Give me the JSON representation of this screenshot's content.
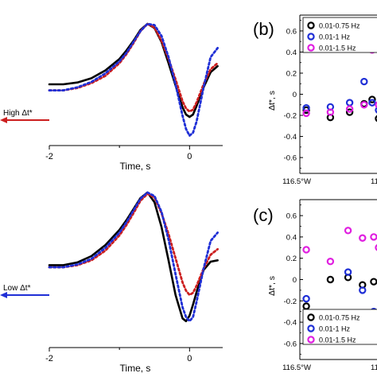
{
  "colors": {
    "black": "#000000",
    "red": "#cc1f1f",
    "blue": "#1f2fd6",
    "magenta": "#e01fe0"
  },
  "chart_data": [
    {
      "id": "waveform-top",
      "type": "line",
      "xlabel": "Time, s",
      "xticks": [
        "-2",
        "0"
      ],
      "xlim": [
        -2.0,
        0.45
      ],
      "side_label": "High Δt*",
      "series": [
        {
          "style": "solid",
          "color": "#000000",
          "x": [
            -2,
            -1.8,
            -1.6,
            -1.4,
            -1.2,
            -1.0,
            -0.9,
            -0.8,
            -0.7,
            -0.6,
            -0.5,
            -0.4,
            -0.3,
            -0.2,
            -0.1,
            -0.05,
            0,
            0.05,
            0.1,
            0.2,
            0.3,
            0.4
          ],
          "y": [
            0,
            0,
            0.03,
            0.1,
            0.23,
            0.42,
            0.56,
            0.72,
            0.9,
            1.0,
            0.93,
            0.7,
            0.35,
            -0.02,
            -0.38,
            -0.5,
            -0.54,
            -0.5,
            -0.36,
            -0.05,
            0.2,
            0.3
          ]
        },
        {
          "style": "dotted",
          "color": "#cc1f1f",
          "x": [
            -2,
            -1.8,
            -1.6,
            -1.4,
            -1.2,
            -1.0,
            -0.9,
            -0.8,
            -0.7,
            -0.6,
            -0.5,
            -0.4,
            -0.3,
            -0.2,
            -0.1,
            -0.05,
            0,
            0.05,
            0.1,
            0.2,
            0.3,
            0.4
          ],
          "y": [
            -0.1,
            -0.1,
            -0.06,
            0.02,
            0.14,
            0.35,
            0.5,
            0.68,
            0.88,
            1.0,
            0.94,
            0.72,
            0.42,
            0.08,
            -0.28,
            -0.4,
            -0.45,
            -0.42,
            -0.3,
            0.0,
            0.25,
            0.35
          ]
        },
        {
          "style": "dotted",
          "color": "#1f2fd6",
          "x": [
            -2,
            -1.8,
            -1.6,
            -1.4,
            -1.2,
            -1.0,
            -0.9,
            -0.8,
            -0.7,
            -0.6,
            -0.5,
            -0.4,
            -0.3,
            -0.2,
            -0.1,
            -0.05,
            0,
            0.05,
            0.1,
            0.2,
            0.3,
            0.4
          ],
          "y": [
            -0.1,
            -0.1,
            -0.05,
            0.04,
            0.18,
            0.38,
            0.52,
            0.7,
            0.88,
            1.0,
            0.98,
            0.8,
            0.45,
            0.0,
            -0.52,
            -0.74,
            -0.85,
            -0.8,
            -0.62,
            -0.05,
            0.45,
            0.6
          ]
        }
      ]
    },
    {
      "id": "waveform-bottom",
      "type": "line",
      "xlabel": "Time, s",
      "xticks": [
        "-2",
        "0"
      ],
      "xlim": [
        -2.0,
        0.45
      ],
      "side_label": "Low Δt*",
      "series": [
        {
          "style": "solid",
          "color": "#000000",
          "x": [
            -2,
            -1.8,
            -1.6,
            -1.4,
            -1.2,
            -1.0,
            -0.9,
            -0.8,
            -0.7,
            -0.6,
            -0.5,
            -0.4,
            -0.3,
            -0.2,
            -0.1,
            -0.05,
            0,
            0.05,
            0.1,
            0.2,
            0.3,
            0.4
          ],
          "y": [
            -0.05,
            -0.05,
            -0.01,
            0.08,
            0.24,
            0.46,
            0.6,
            0.76,
            0.92,
            1.0,
            0.86,
            0.5,
            0.02,
            -0.48,
            -0.82,
            -0.86,
            -0.78,
            -0.62,
            -0.44,
            -0.12,
            0.0,
            0.02
          ]
        },
        {
          "style": "dotted",
          "color": "#cc1f1f",
          "x": [
            -2,
            -1.8,
            -1.6,
            -1.4,
            -1.2,
            -1.0,
            -0.9,
            -0.8,
            -0.7,
            -0.6,
            -0.5,
            -0.4,
            -0.3,
            -0.2,
            -0.1,
            -0.05,
            0,
            0.05,
            0.1,
            0.2,
            0.3,
            0.4
          ],
          "y": [
            -0.08,
            -0.08,
            -0.05,
            0.02,
            0.16,
            0.38,
            0.53,
            0.7,
            0.88,
            0.98,
            0.93,
            0.7,
            0.4,
            0.05,
            -0.3,
            -0.42,
            -0.48,
            -0.45,
            -0.35,
            -0.1,
            0.1,
            0.18
          ]
        },
        {
          "style": "dotted",
          "color": "#1f2fd6",
          "x": [
            -2,
            -1.8,
            -1.6,
            -1.4,
            -1.2,
            -1.0,
            -0.9,
            -0.8,
            -0.7,
            -0.6,
            -0.5,
            -0.4,
            -0.3,
            -0.2,
            -0.1,
            -0.05,
            0,
            0.05,
            0.1,
            0.2,
            0.3,
            0.4
          ],
          "y": [
            -0.08,
            -0.08,
            -0.04,
            0.04,
            0.2,
            0.42,
            0.57,
            0.74,
            0.91,
            1.0,
            0.95,
            0.72,
            0.32,
            -0.18,
            -0.66,
            -0.8,
            -0.86,
            -0.8,
            -0.58,
            -0.1,
            0.3,
            0.42
          ]
        }
      ]
    },
    {
      "id": "panel-b",
      "type": "scatter",
      "panel_label": "(b)",
      "ylabel": "Δt*, s",
      "ylim": [
        -0.75,
        0.75
      ],
      "yticks": [
        -0.6,
        -0.4,
        -0.2,
        0,
        0.2,
        0.4,
        0.6
      ],
      "xlim": [
        0,
        1
      ],
      "xtick_labels": [
        "116.5°W",
        "11"
      ],
      "legend_position": "top-right",
      "series": [
        {
          "name": "0.01-0.75 Hz",
          "color": "#000000",
          "x": [
            0.08,
            0.38,
            0.62,
            0.8,
            0.9,
            0.98
          ],
          "y": [
            -0.15,
            -0.22,
            -0.17,
            -0.09,
            -0.05,
            -0.23
          ]
        },
        {
          "name": "0.01-1 Hz",
          "color": "#1f2fd6",
          "x": [
            0.08,
            0.38,
            0.62,
            0.8,
            0.9,
            0.98
          ],
          "y": [
            -0.13,
            -0.12,
            -0.08,
            0.12,
            -0.08,
            -0.15
          ]
        },
        {
          "name": "0.01-1.5 Hz",
          "color": "#e01fe0",
          "x": [
            0.08,
            0.38,
            0.62,
            0.8,
            0.9,
            0.98
          ],
          "y": [
            -0.18,
            -0.17,
            -0.14,
            -0.1,
            0.42,
            -0.1
          ]
        }
      ]
    },
    {
      "id": "panel-c",
      "type": "scatter",
      "panel_label": "(c)",
      "ylabel": "Δt*, s",
      "ylim": [
        -0.75,
        0.75
      ],
      "yticks": [
        -0.6,
        -0.4,
        -0.2,
        0,
        0.2,
        0.4,
        0.6
      ],
      "xlim": [
        0,
        1
      ],
      "xtick_labels": [
        "116.5°W",
        "11"
      ],
      "legend_position": "bottom-right",
      "series": [
        {
          "name": "0.01-0.75 Hz",
          "color": "#000000",
          "x": [
            0.08,
            0.38,
            0.6,
            0.78,
            0.92,
            0.98
          ],
          "y": [
            -0.25,
            0.0,
            0.02,
            -0.05,
            -0.02,
            -0.42
          ]
        },
        {
          "name": "0.01-1 Hz",
          "color": "#1f2fd6",
          "x": [
            0.08,
            0.38,
            0.6,
            0.78,
            0.92,
            0.98
          ],
          "y": [
            -0.18,
            -0.32,
            0.07,
            -0.1,
            -0.3,
            -0.4
          ]
        },
        {
          "name": "0.01-1.5 Hz",
          "color": "#e01fe0",
          "x": [
            0.08,
            0.38,
            0.6,
            0.78,
            0.92,
            0.98
          ],
          "y": [
            0.28,
            0.17,
            0.46,
            0.39,
            0.4,
            0.3
          ]
        }
      ]
    }
  ]
}
